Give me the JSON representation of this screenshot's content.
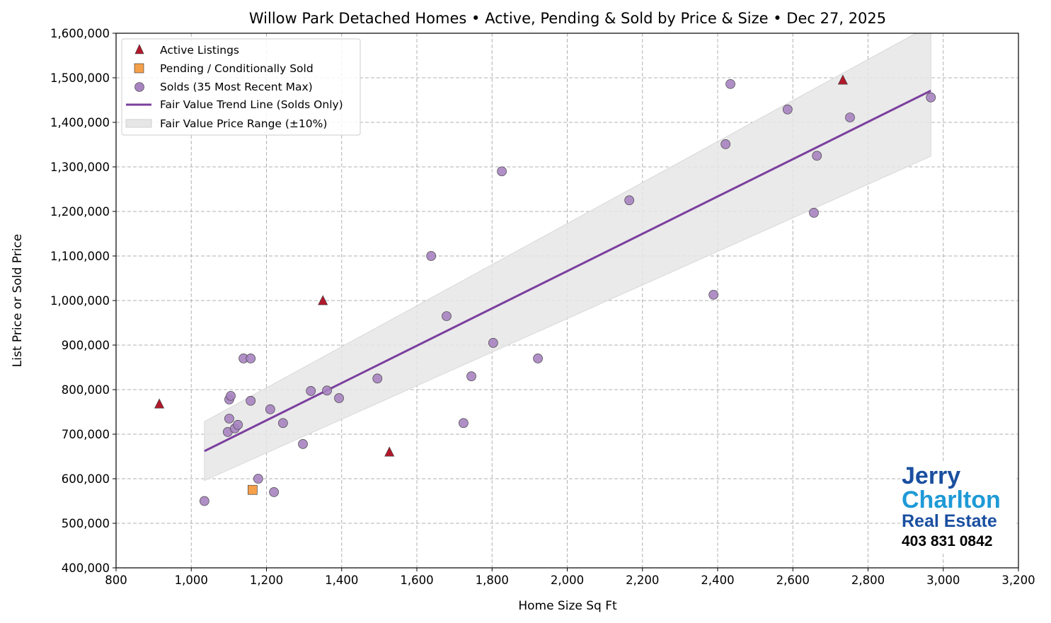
{
  "chart_data": {
    "type": "scatter",
    "title": "Willow Park Detached Homes • Active, Pending & Sold by Price & Size • Dec 27, 2025",
    "xlabel": "Home Size Sq Ft",
    "ylabel": "List Price or Sold Price",
    "xlim": [
      800,
      3200
    ],
    "ylim": [
      400000,
      1600000
    ],
    "xticks": [
      800,
      1000,
      1200,
      1400,
      1600,
      1800,
      2000,
      2200,
      2400,
      2600,
      2800,
      3000,
      3200
    ],
    "xtick_labels": [
      "800",
      "1,000",
      "1,200",
      "1,400",
      "1,600",
      "1,800",
      "2,000",
      "2,200",
      "2,400",
      "2,600",
      "2,800",
      "3,000",
      "3,200"
    ],
    "yticks": [
      400000,
      500000,
      600000,
      700000,
      800000,
      900000,
      1000000,
      1100000,
      1200000,
      1300000,
      1400000,
      1500000,
      1600000
    ],
    "ytick_labels": [
      "400,000",
      "500,000",
      "600,000",
      "700,000",
      "800,000",
      "900,000",
      "1,000,000",
      "1,100,000",
      "1,200,000",
      "1,300,000",
      "1,400,000",
      "1,500,000",
      "1,600,000"
    ],
    "grid": true,
    "legend_position": "top-left",
    "series": [
      {
        "name": "Active Listings",
        "marker": "triangle",
        "color": "#b2182b",
        "points": [
          [
            915,
            768000
          ],
          [
            1350,
            1000000
          ],
          [
            1527,
            660000
          ],
          [
            2733,
            1495000
          ]
        ]
      },
      {
        "name": "Pending / Conditionally Sold",
        "marker": "square",
        "color": "#f4a04a",
        "points": [
          [
            1163,
            575000
          ]
        ]
      },
      {
        "name": "Solds (35 Most Recent Max)",
        "marker": "circle",
        "color": "#a783c0",
        "points": [
          [
            1035,
            550000
          ],
          [
            1097,
            705000
          ],
          [
            1101,
            735000
          ],
          [
            1101,
            778000
          ],
          [
            1105,
            786000
          ],
          [
            1116,
            713000
          ],
          [
            1124,
            721000
          ],
          [
            1139,
            870000
          ],
          [
            1158,
            870000
          ],
          [
            1158,
            775000
          ],
          [
            1178,
            600000
          ],
          [
            1210,
            756000
          ],
          [
            1220,
            570000
          ],
          [
            1244,
            725000
          ],
          [
            1297,
            678000
          ],
          [
            1318,
            797000
          ],
          [
            1361,
            798000
          ],
          [
            1393,
            781000
          ],
          [
            1495,
            825000
          ],
          [
            1638,
            1100000
          ],
          [
            1679,
            965000
          ],
          [
            1724,
            725000
          ],
          [
            1745,
            830000
          ],
          [
            1803,
            905000
          ],
          [
            1826,
            1290000
          ],
          [
            1922,
            870000
          ],
          [
            2165,
            1225000
          ],
          [
            2389,
            1013000
          ],
          [
            2421,
            1351000
          ],
          [
            2434,
            1486000
          ],
          [
            2586,
            1429000
          ],
          [
            2656,
            1197000
          ],
          [
            2664,
            1325000
          ],
          [
            2752,
            1411000
          ],
          [
            2967,
            1456000
          ]
        ]
      }
    ],
    "trend_line": {
      "name": "Fair Value Trend Line (Solds Only)",
      "color": "#7b3f9e",
      "x": [
        1035,
        2967
      ],
      "y": [
        662000,
        1471000
      ]
    },
    "band": {
      "name": "Fair Value Price Range (±10%)",
      "color": "#e6e6e6",
      "pct": 10
    }
  },
  "logo": {
    "line1": "Jerry",
    "line2": "Charlton",
    "line3": "Real Estate",
    "phone": "403 831 0842"
  }
}
